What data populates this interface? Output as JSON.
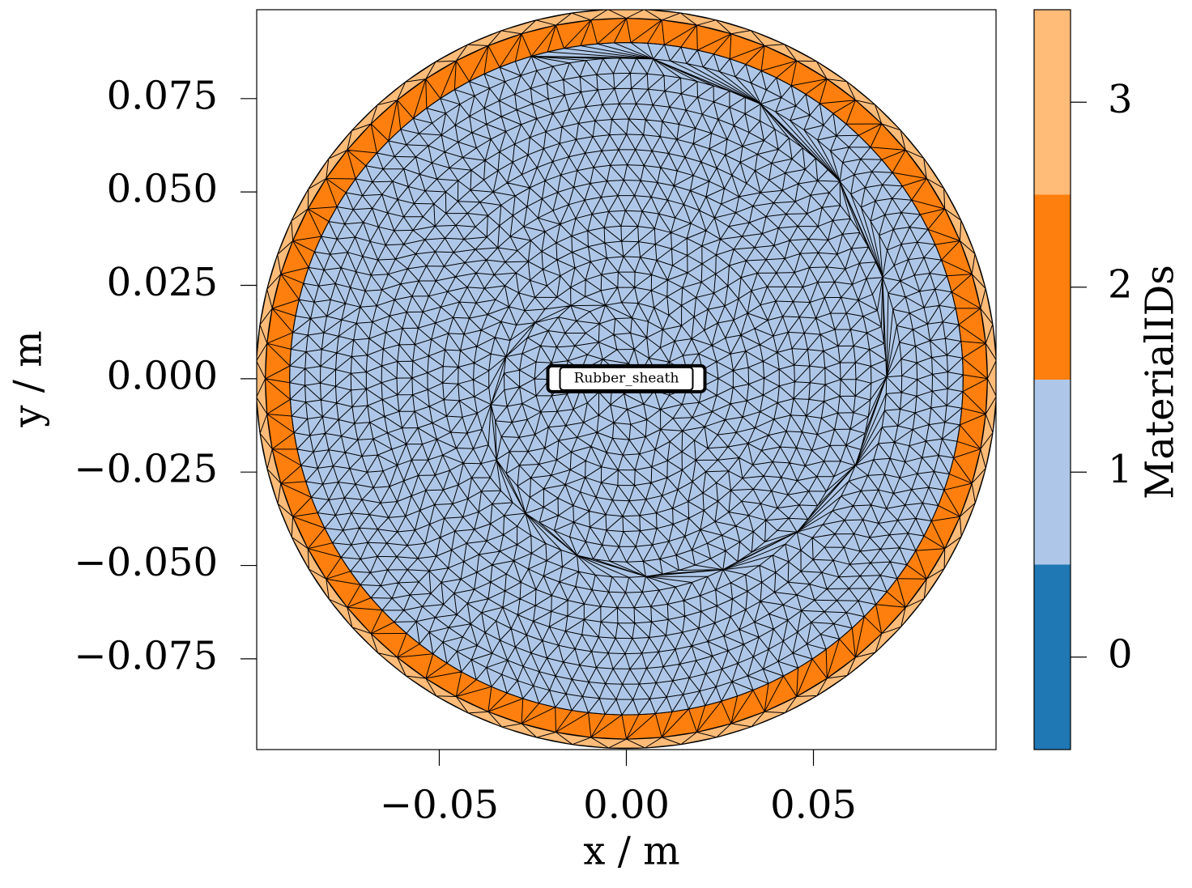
{
  "chart_data": {
    "type": "mesh",
    "xlabel": "x / m",
    "ylabel": "y / m",
    "xlim": [
      -0.0988,
      0.0988
    ],
    "ylim": [
      -0.0993,
      0.0988
    ],
    "xticks": [
      {
        "value": -0.05,
        "label": "−0.05"
      },
      {
        "value": 0,
        "label": "0.00"
      },
      {
        "value": 0.05,
        "label": "0.05"
      }
    ],
    "yticks": [
      {
        "value": -0.075,
        "label": "−0.075"
      },
      {
        "value": -0.05,
        "label": "−0.050"
      },
      {
        "value": -0.025,
        "label": "−0.025"
      },
      {
        "value": 0,
        "label": "0.000"
      },
      {
        "value": 0.025,
        "label": "0.025"
      },
      {
        "value": 0.05,
        "label": "0.050"
      },
      {
        "value": 0.075,
        "label": "0.075"
      }
    ],
    "regions": [
      {
        "material_id": 3,
        "radius": 0.099
      },
      {
        "material_id": 2,
        "radius": 0.0965
      },
      {
        "material_id": 1,
        "radius": 0.09
      }
    ],
    "annotation": "Rubber_sheath",
    "colorbar": {
      "label": "MaterialIDs",
      "clim": [
        -0.5,
        3.5
      ],
      "ticks": [
        0,
        1,
        2,
        3
      ],
      "colors": [
        "#1f77b4",
        "#aec7e8",
        "#ff7f0e",
        "#ffbb78"
      ]
    }
  }
}
